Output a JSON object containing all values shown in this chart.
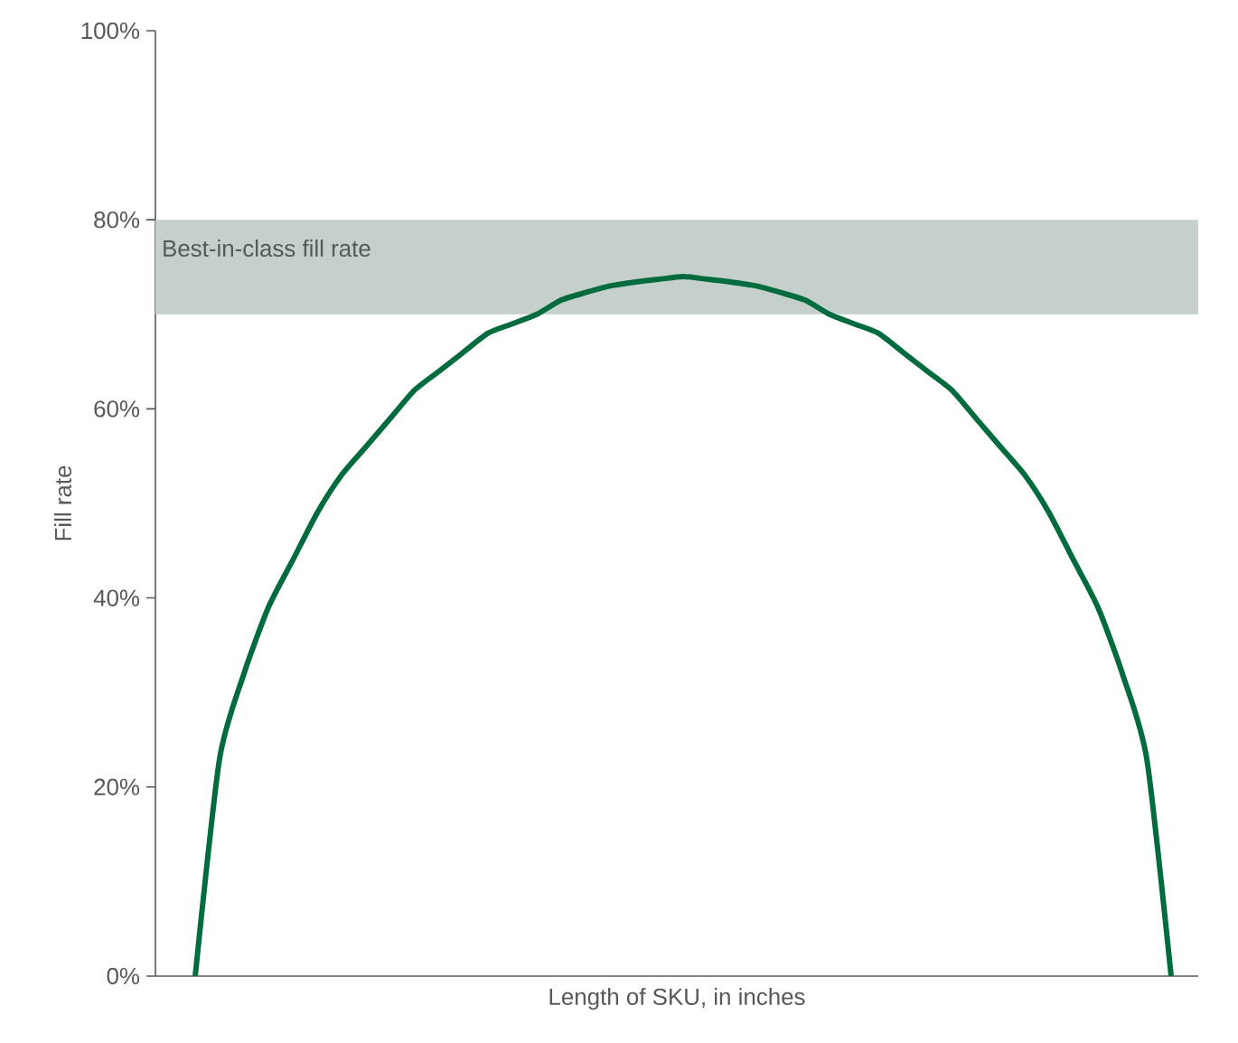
{
  "chart_data": {
    "type": "line",
    "xlabel": "Length of SKU, in inches",
    "ylabel": "Fill rate",
    "categories": [
      null,
      null,
      null,
      null,
      null,
      null,
      null,
      null,
      null,
      null,
      null,
      null,
      null,
      null,
      null,
      null,
      null,
      null,
      null,
      null,
      null,
      null,
      null,
      null,
      null,
      null,
      null,
      null,
      null,
      null,
      null,
      null,
      null,
      null,
      null,
      null,
      null,
      null,
      null,
      null,
      null
    ],
    "series": [
      {
        "color": "#006b3c",
        "values": [
          0,
          23,
          32,
          39,
          44,
          49,
          53,
          56,
          59,
          62,
          64,
          66,
          68,
          69,
          70,
          71.5,
          72.3,
          73,
          73.4,
          73.7,
          74,
          73.7,
          73.4,
          73,
          72.3,
          71.5,
          70,
          69,
          68,
          66,
          64,
          62,
          59,
          56,
          53,
          49,
          44,
          39,
          32,
          23,
          0
        ]
      }
    ],
    "ylim": [
      0,
      100
    ],
    "yticks": [
      {
        "value": 0,
        "label": "0%"
      },
      {
        "value": 20,
        "label": "20%"
      },
      {
        "value": 40,
        "label": "40%"
      },
      {
        "value": 60,
        "label": "60%"
      },
      {
        "value": 80,
        "label": "80%"
      },
      {
        "value": 100,
        "label": "100%"
      }
    ],
    "bands": [
      {
        "axis": "y",
        "from": 70,
        "to": 80,
        "label": "Best-in-class fill rate",
        "color": "#c5cfcc"
      }
    ],
    "tick_labels": "y",
    "grid": false,
    "marker": "none",
    "line_style": "solid"
  }
}
